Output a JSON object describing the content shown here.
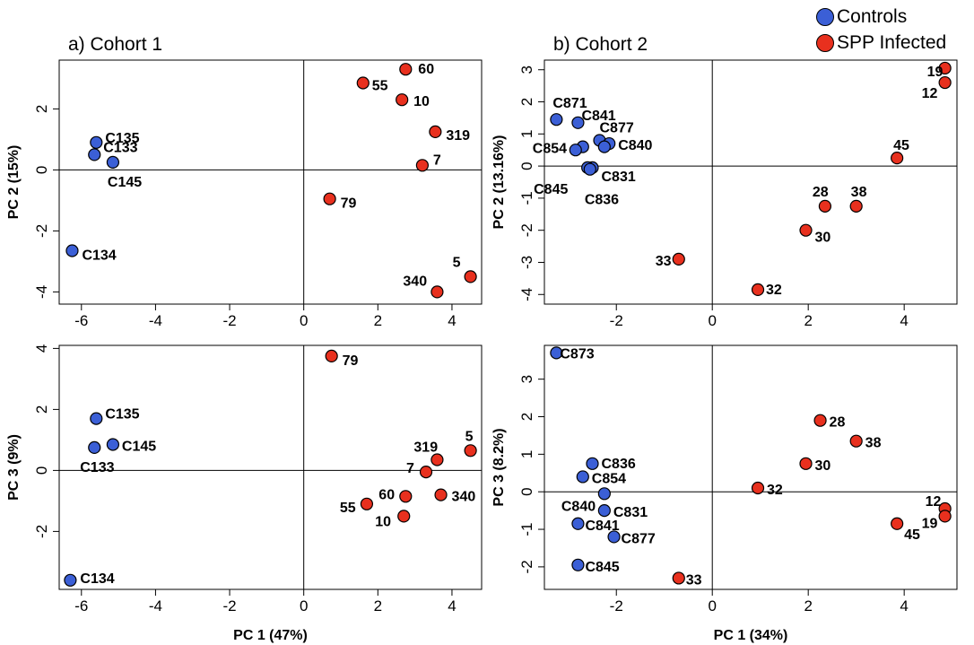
{
  "legend": {
    "controls_label": "Controls",
    "infected_label": "SPP Infected"
  },
  "colors": {
    "controls": "#3b5fd6",
    "infected": "#e8301e"
  },
  "panel_titles": {
    "cohort1": "a) Cohort 1",
    "cohort2": "b) Cohort 2"
  },
  "chart_data": [
    {
      "type": "scatter",
      "title": "a) Cohort 1",
      "xlabel": "",
      "ylabel": "PC 2 (15%)",
      "xlim": [
        -6.6,
        4.8
      ],
      "ylim": [
        -4.4,
        3.6
      ],
      "xticks": [
        "-6",
        "-4",
        "-2",
        "0",
        "2",
        "4"
      ],
      "yticks": [
        "-4",
        "-2",
        "0",
        "2"
      ],
      "points": [
        {
          "label": "C135",
          "group": "controls",
          "x": -5.6,
          "y": 0.9
        },
        {
          "label": "C133",
          "group": "controls",
          "x": -5.65,
          "y": 0.5
        },
        {
          "label": "C145",
          "group": "controls",
          "x": -5.15,
          "y": 0.25
        },
        {
          "label": "C134",
          "group": "controls",
          "x": -6.25,
          "y": -2.65
        },
        {
          "label": "60",
          "group": "infected",
          "x": 2.75,
          "y": 3.3
        },
        {
          "label": "55",
          "group": "infected",
          "x": 1.6,
          "y": 2.85
        },
        {
          "label": "10",
          "group": "infected",
          "x": 2.65,
          "y": 2.3
        },
        {
          "label": "319",
          "group": "infected",
          "x": 3.55,
          "y": 1.25
        },
        {
          "label": "7",
          "group": "infected",
          "x": 3.2,
          "y": 0.15
        },
        {
          "label": "79",
          "group": "infected",
          "x": 0.7,
          "y": -0.95
        },
        {
          "label": "5",
          "group": "infected",
          "x": 4.5,
          "y": -3.5
        },
        {
          "label": "340",
          "group": "infected",
          "x": 3.6,
          "y": -4.0
        }
      ]
    },
    {
      "type": "scatter",
      "title": "b) Cohort 2",
      "xlabel": "",
      "ylabel": "PC 2 (13.16%)",
      "xlim": [
        -3.5,
        5.1
      ],
      "ylim": [
        -4.3,
        3.3
      ],
      "xticks": [
        "-2",
        "0",
        "2",
        "4"
      ],
      "yticks": [
        "-4",
        "-3",
        "-2",
        "-1",
        "0",
        "1",
        "2",
        "3"
      ],
      "points": [
        {
          "label": "C871",
          "group": "controls",
          "x": -3.25,
          "y": 1.45
        },
        {
          "label": "C841",
          "group": "controls",
          "x": -2.8,
          "y": 1.35
        },
        {
          "label": "C877",
          "group": "controls",
          "x": -2.35,
          "y": 0.8
        },
        {
          "label": "C840",
          "group": "controls",
          "x": -2.15,
          "y": 0.7
        },
        {
          "label": "C854",
          "group": "controls",
          "x": -2.7,
          "y": 0.6
        },
        {
          "label": "",
          "group": "controls",
          "x": -2.85,
          "y": 0.5
        },
        {
          "label": "",
          "group": "controls",
          "x": -2.25,
          "y": 0.6
        },
        {
          "label": "C831",
          "group": "controls",
          "x": -2.5,
          "y": -0.05
        },
        {
          "label": "C845",
          "group": "controls",
          "x": -2.6,
          "y": -0.05
        },
        {
          "label": "C836",
          "group": "controls",
          "x": -2.55,
          "y": -0.1
        },
        {
          "label": "19",
          "group": "infected",
          "x": 4.85,
          "y": 3.05
        },
        {
          "label": "12",
          "group": "infected",
          "x": 4.85,
          "y": 2.6
        },
        {
          "label": "45",
          "group": "infected",
          "x": 3.85,
          "y": 0.25
        },
        {
          "label": "28",
          "group": "infected",
          "x": 2.35,
          "y": -1.25
        },
        {
          "label": "38",
          "group": "infected",
          "x": 3.0,
          "y": -1.25
        },
        {
          "label": "30",
          "group": "infected",
          "x": 1.95,
          "y": -2.0
        },
        {
          "label": "33",
          "group": "infected",
          "x": -0.7,
          "y": -2.9
        },
        {
          "label": "32",
          "group": "infected",
          "x": 0.95,
          "y": -3.85
        }
      ]
    },
    {
      "type": "scatter",
      "title": "",
      "xlabel": "PC 1 (47%)",
      "ylabel": "PC 3 (9%)",
      "xlim": [
        -6.6,
        4.8
      ],
      "ylim": [
        -3.9,
        4.1
      ],
      "xticks": [
        "-6",
        "-4",
        "-2",
        "0",
        "2",
        "4"
      ],
      "yticks": [
        "-2",
        "0",
        "2",
        "4"
      ],
      "points": [
        {
          "label": "C135",
          "group": "controls",
          "x": -5.6,
          "y": 1.7
        },
        {
          "label": "C145",
          "group": "controls",
          "x": -5.15,
          "y": 0.85
        },
        {
          "label": "C133",
          "group": "controls",
          "x": -5.65,
          "y": 0.75
        },
        {
          "label": "C134",
          "group": "controls",
          "x": -6.3,
          "y": -3.6
        },
        {
          "label": "79",
          "group": "infected",
          "x": 0.75,
          "y": 3.75
        },
        {
          "label": "5",
          "group": "infected",
          "x": 4.5,
          "y": 0.65
        },
        {
          "label": "319",
          "group": "infected",
          "x": 3.6,
          "y": 0.35
        },
        {
          "label": "7",
          "group": "infected",
          "x": 3.3,
          "y": -0.05
        },
        {
          "label": "60",
          "group": "infected",
          "x": 2.75,
          "y": -0.85
        },
        {
          "label": "340",
          "group": "infected",
          "x": 3.7,
          "y": -0.8
        },
        {
          "label": "55",
          "group": "infected",
          "x": 1.7,
          "y": -1.1
        },
        {
          "label": "10",
          "group": "infected",
          "x": 2.7,
          "y": -1.5
        }
      ]
    },
    {
      "type": "scatter",
      "title": "",
      "xlabel": "PC 1 (34%)",
      "ylabel": "PC 3 (8.2%)",
      "xlim": [
        -3.5,
        5.1
      ],
      "ylim": [
        -2.6,
        3.9
      ],
      "xticks": [
        "-2",
        "0",
        "2",
        "4"
      ],
      "yticks": [
        "-2",
        "-1",
        "0",
        "1",
        "2",
        "3"
      ],
      "points": [
        {
          "label": "C873",
          "group": "controls",
          "x": -3.25,
          "y": 3.7
        },
        {
          "label": "C836",
          "group": "controls",
          "x": -2.5,
          "y": 0.75
        },
        {
          "label": "C854",
          "group": "controls",
          "x": -2.7,
          "y": 0.4
        },
        {
          "label": "C840",
          "group": "controls",
          "x": -2.25,
          "y": -0.05
        },
        {
          "label": "C831",
          "group": "controls",
          "x": -2.25,
          "y": -0.5
        },
        {
          "label": "C841",
          "group": "controls",
          "x": -2.8,
          "y": -0.85
        },
        {
          "label": "C877",
          "group": "controls",
          "x": -2.05,
          "y": -1.2
        },
        {
          "label": "C845",
          "group": "controls",
          "x": -2.8,
          "y": -1.95
        },
        {
          "label": "28",
          "group": "infected",
          "x": 2.25,
          "y": 1.9
        },
        {
          "label": "38",
          "group": "infected",
          "x": 3.0,
          "y": 1.35
        },
        {
          "label": "30",
          "group": "infected",
          "x": 1.95,
          "y": 0.75
        },
        {
          "label": "32",
          "group": "infected",
          "x": 0.95,
          "y": 0.1
        },
        {
          "label": "12",
          "group": "infected",
          "x": 4.85,
          "y": -0.45
        },
        {
          "label": "19",
          "group": "infected",
          "x": 4.85,
          "y": -0.65
        },
        {
          "label": "45",
          "group": "infected",
          "x": 3.85,
          "y": -0.85
        },
        {
          "label": "33",
          "group": "infected",
          "x": -0.7,
          "y": -2.3
        }
      ]
    }
  ]
}
